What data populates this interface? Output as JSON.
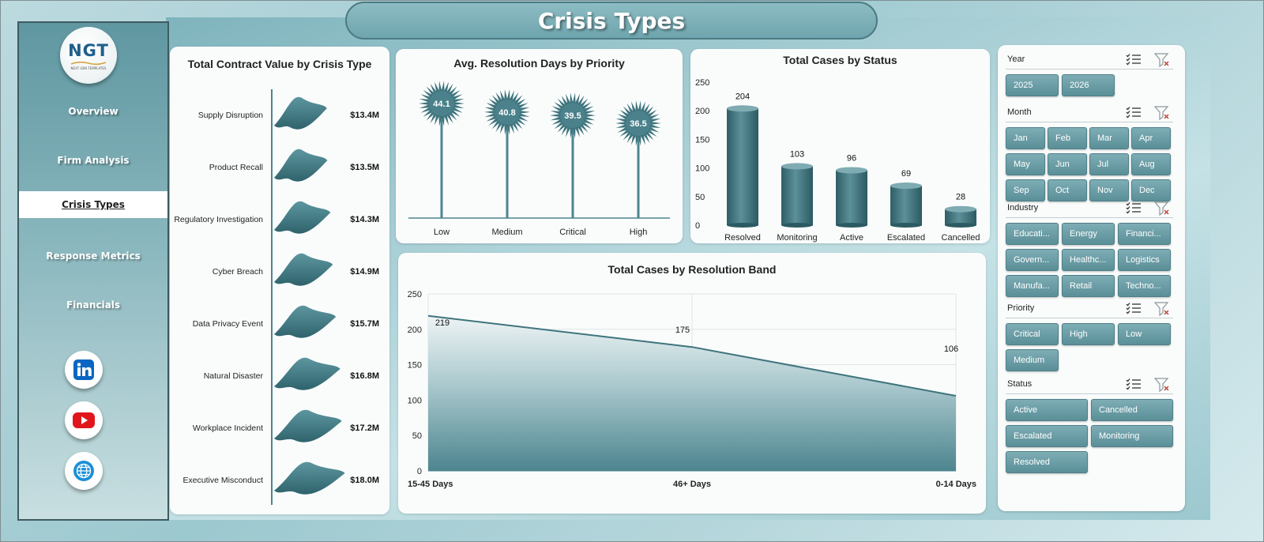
{
  "title": "Crisis Types",
  "sidebar": {
    "logo_text": "NGT",
    "logo_sub": "NEXT GEN TEMPLATES",
    "nav": [
      "Overview",
      "Firm Analysis",
      "Crisis Types",
      "Response Metrics",
      "Financials"
    ],
    "active": "Crisis Types",
    "social_icons": [
      "linkedin-icon",
      "youtube-icon",
      "globe-icon"
    ]
  },
  "colors": {
    "accent": "#4d858f",
    "accent_dark": "#3b6e77",
    "fill_light": "#e9f1f2"
  },
  "slicers": {
    "year": {
      "label": "Year",
      "items": [
        "2025",
        "2026"
      ]
    },
    "month": {
      "label": "Month",
      "items": [
        "Jan",
        "Feb",
        "Mar",
        "Apr",
        "May",
        "Jun",
        "Jul",
        "Aug",
        "Sep",
        "Oct",
        "Nov",
        "Dec"
      ]
    },
    "industry": {
      "label": "Industry",
      "items": [
        "Educati...",
        "Energy",
        "Financi...",
        "Govern...",
        "Healthc...",
        "Logistics",
        "Manufa...",
        "Retail",
        "Techno..."
      ]
    },
    "priority": {
      "label": "Priority",
      "items": [
        "Critical",
        "High",
        "Low",
        "Medium"
      ]
    },
    "status": {
      "label": "Status",
      "items": [
        "Active",
        "Cancelled",
        "Escalated",
        "Monitoring",
        "Resolved"
      ]
    }
  },
  "chart_data": [
    {
      "type": "bar",
      "title": "Total Contract Value by Crisis Type",
      "categories": [
        "Supply Disruption",
        "Product Recall",
        "Regulatory Investigation",
        "Cyber Breach",
        "Data Privacy Event",
        "Natural Disaster",
        "Workplace Incident",
        "Executive Misconduct"
      ],
      "values": [
        13.4,
        13.5,
        14.3,
        14.9,
        15.7,
        16.8,
        17.2,
        18.0
      ],
      "data_labels": [
        "$13.4M",
        "$13.5M",
        "$14.3M",
        "$14.9M",
        "$15.7M",
        "$16.8M",
        "$17.2M",
        "$18.0M"
      ],
      "orientation": "horizontal"
    },
    {
      "type": "bar",
      "title": "Avg. Resolution Days by Priority",
      "categories": [
        "Low",
        "Medium",
        "Critical",
        "High"
      ],
      "values": [
        44.1,
        40.8,
        39.5,
        36.5
      ],
      "data_labels": [
        "44.1",
        "40.8",
        "39.5",
        "36.5"
      ],
      "style": "lollipop-starburst"
    },
    {
      "type": "bar",
      "title": "Total Cases by Status",
      "categories": [
        "Resolved",
        "Monitoring",
        "Active",
        "Escalated",
        "Cancelled"
      ],
      "values": [
        204,
        103,
        96,
        69,
        28
      ],
      "data_labels": [
        "204",
        "103",
        "96",
        "69",
        "28"
      ],
      "ylim": [
        0,
        250
      ],
      "yticks": [
        "0",
        "50",
        "100",
        "150",
        "200",
        "250"
      ],
      "style": "cylinder"
    },
    {
      "type": "area",
      "title": "Total Cases by Resolution  Band",
      "categories": [
        "15-45 Days",
        "46+ Days",
        "0-14 Days"
      ],
      "values": [
        219,
        175,
        106
      ],
      "data_labels": [
        "219",
        "175",
        "106"
      ],
      "ylim": [
        0,
        250
      ],
      "yticks": [
        "0",
        "50",
        "100",
        "150",
        "200",
        "250"
      ],
      "grid": true
    }
  ]
}
